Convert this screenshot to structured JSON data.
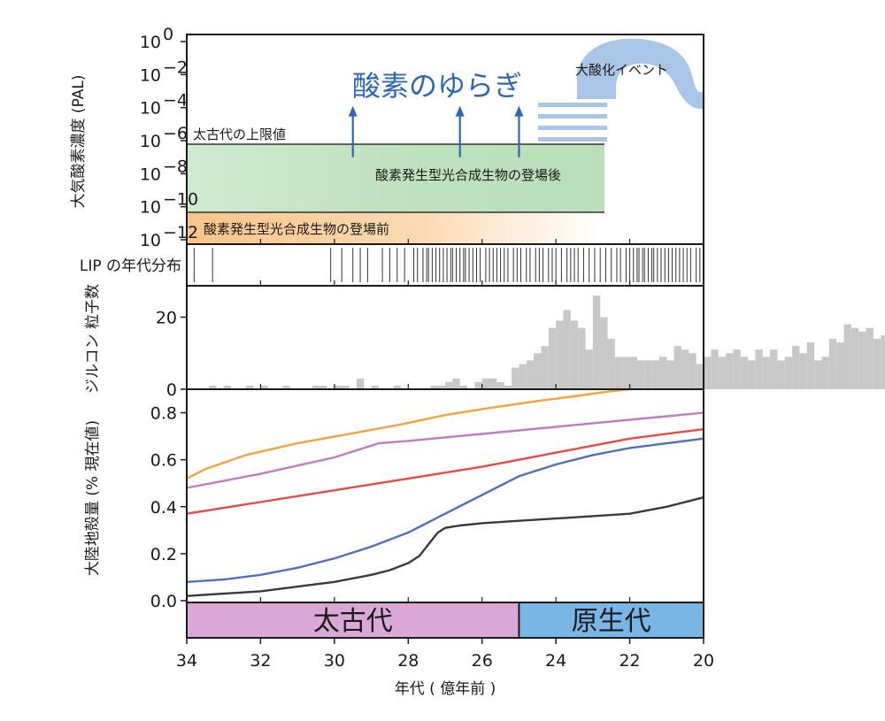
{
  "chart_data": [
    {
      "panel": "oxygen",
      "type": "area",
      "ylabel": "大気酸素濃度 (PAL)",
      "yscale": "log",
      "xlim": [
        34,
        20
      ],
      "ylim": [
        1e-12,
        1
      ],
      "yticks": [
        {
          "value": 1.0,
          "exp": "0"
        },
        {
          "value": 0.01,
          "exp": "−2"
        },
        {
          "value": 0.0001,
          "exp": "−4"
        },
        {
          "value": 1e-06,
          "exp": "−6"
        },
        {
          "value": 1e-08,
          "exp": "−8"
        },
        {
          "value": 1e-10,
          "exp": "−10"
        },
        {
          "value": 1e-12,
          "exp": "−12"
        }
      ],
      "archean_upper_limit": {
        "label": "太古代の上限値",
        "value": 1e-06,
        "x_start": 34,
        "x_end": 22.6
      },
      "post_photosynthesis_band": {
        "label": "酸素発生型光合成生物の登場後",
        "y_range": [
          1e-10,
          1e-06
        ],
        "x_range": [
          34,
          22.6
        ],
        "color": "#bfe3bf"
      },
      "pre_photosynthesis_band": {
        "label": "酸素発生型光合成生物の登場前",
        "y_range": [
          1e-12,
          1e-10
        ],
        "x_range": [
          34,
          22.6
        ],
        "color": "#f7c590"
      },
      "fluctuation": {
        "label": "酸素のゆらぎ",
        "arrows_at": [
          29.5,
          26.6,
          25.0
        ],
        "arrow_from": 1e-07,
        "arrow_to": 0.0001,
        "color": "#2f67b4"
      },
      "goe": {
        "label": "大酸化イベント",
        "color": "#a9c6e6"
      }
    },
    {
      "panel": "lip",
      "type": "rug",
      "ylabel": "LIP の年代分布",
      "ages": [
        33.8,
        33.3,
        30.1,
        29.8,
        29.5,
        29.3,
        29.1,
        28.7,
        28.5,
        28.3,
        28.1,
        27.85,
        27.75,
        27.6,
        27.5,
        27.45,
        27.35,
        27.25,
        27.15,
        27.05,
        26.95,
        26.85,
        26.8,
        26.7,
        26.6,
        26.5,
        26.45,
        26.35,
        26.25,
        26.15,
        26.05,
        25.9,
        25.8,
        25.7,
        25.6,
        25.5,
        25.4,
        25.3,
        25.15,
        25.05,
        24.95,
        24.8,
        24.7,
        24.55,
        24.45,
        24.35,
        24.2,
        24.1,
        24.0,
        23.85,
        23.7,
        23.6,
        23.5,
        23.4,
        23.25,
        23.1,
        22.95,
        22.8,
        22.65,
        22.5,
        22.35,
        22.25,
        22.1,
        22.0,
        21.9,
        21.8,
        21.75,
        21.65,
        21.6,
        21.5,
        21.4,
        21.35,
        21.25,
        21.15,
        21.05,
        20.95,
        20.85,
        20.75,
        20.65,
        20.55,
        20.45,
        20.35,
        20.2,
        20.1
      ]
    },
    {
      "panel": "zircon",
      "type": "bar",
      "ylabel": "ジルコン 粒子数",
      "ylim": [
        0,
        27
      ],
      "yticks": [
        "0",
        "20"
      ],
      "bin_width": 0.2,
      "bin_start": 34.0,
      "values": [
        0,
        0,
        0,
        1,
        0,
        1,
        0,
        0,
        1,
        0,
        1,
        0,
        0,
        1,
        0,
        0,
        0,
        1,
        1,
        0,
        1,
        1,
        0,
        3,
        0,
        1,
        0,
        0,
        1,
        0,
        0,
        0,
        0,
        1,
        1,
        2,
        3,
        1,
        0,
        2,
        3,
        3,
        2,
        1,
        6,
        7,
        8,
        10,
        12,
        17,
        19,
        22,
        19,
        17,
        11,
        26,
        20,
        14,
        9,
        9,
        9,
        8,
        8,
        8,
        9,
        8,
        12,
        11,
        10,
        7,
        9,
        11,
        9,
        10,
        11,
        9,
        8,
        11,
        9,
        11,
        8,
        9,
        12,
        10,
        13,
        8,
        9,
        14,
        13,
        18,
        17,
        16,
        17,
        14,
        15,
        11,
        10,
        11,
        9,
        10,
        9
      ],
      "color": "#c8c8c8"
    },
    {
      "panel": "continental",
      "type": "line",
      "ylabel": "大陸地殻量 (% 現在値)",
      "xlabel": "年代 ( 億年前 )",
      "xlim": [
        34,
        20
      ],
      "ylim": [
        0,
        0.9
      ],
      "xticks": [
        "34",
        "32",
        "30",
        "28",
        "26",
        "24",
        "22",
        "20"
      ],
      "yticks": [
        "0.0",
        "0.2",
        "0.4",
        "0.6",
        "0.8"
      ],
      "series": [
        {
          "color": "#f2a43a",
          "x": [
            34,
            33.5,
            32.4,
            31,
            29.6,
            28.2,
            27,
            25.8,
            24.5,
            23.5,
            22.6,
            22.0
          ],
          "y": [
            0.52,
            0.56,
            0.62,
            0.67,
            0.71,
            0.75,
            0.79,
            0.82,
            0.85,
            0.87,
            0.89,
            0.9
          ]
        },
        {
          "color": "#c07cc2",
          "x": [
            34,
            32,
            30,
            28.8,
            28,
            26,
            24,
            22,
            20
          ],
          "y": [
            0.48,
            0.54,
            0.61,
            0.67,
            0.68,
            0.71,
            0.74,
            0.77,
            0.8
          ]
        },
        {
          "color": "#e84a44",
          "x": [
            34,
            32,
            30,
            28,
            26,
            25,
            24,
            22,
            20
          ],
          "y": [
            0.37,
            0.42,
            0.47,
            0.52,
            0.57,
            0.6,
            0.63,
            0.69,
            0.73
          ]
        },
        {
          "color": "#4e73b8",
          "x": [
            34,
            33,
            32,
            31,
            30,
            29,
            28,
            27,
            26,
            25,
            24,
            23,
            22,
            21,
            20
          ],
          "y": [
            0.08,
            0.09,
            0.11,
            0.14,
            0.18,
            0.23,
            0.29,
            0.37,
            0.45,
            0.53,
            0.58,
            0.62,
            0.65,
            0.67,
            0.69
          ]
        },
        {
          "color": "#3a3a3a",
          "x": [
            34,
            33,
            32,
            31,
            30,
            29,
            28.5,
            28,
            27.7,
            27.4,
            27.2,
            27,
            26.6,
            26,
            25,
            24,
            23,
            22,
            21,
            20
          ],
          "y": [
            0.02,
            0.03,
            0.04,
            0.06,
            0.08,
            0.11,
            0.13,
            0.16,
            0.19,
            0.25,
            0.29,
            0.31,
            0.32,
            0.33,
            0.34,
            0.35,
            0.36,
            0.37,
            0.4,
            0.44
          ]
        }
      ]
    }
  ],
  "eras": [
    {
      "label": "太古代",
      "from": 34,
      "to": 25,
      "color": "#d9a8d6"
    },
    {
      "label": "原生代",
      "from": 25,
      "to": 20,
      "color": "#79b6e6"
    }
  ]
}
